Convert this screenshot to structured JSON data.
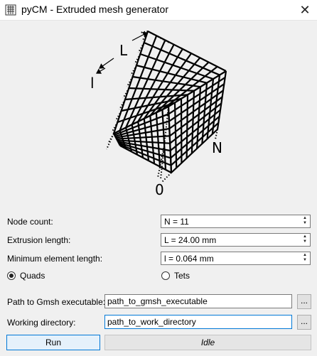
{
  "window": {
    "title": "pyCM - Extruded mesh generator",
    "close_glyph": "✕"
  },
  "figure": {
    "label_L": "L",
    "label_l": "l",
    "label_N": "N",
    "label_zero": "0"
  },
  "params": {
    "node_count_label": "Node count:",
    "node_count_value": "N = 11",
    "extrusion_label": "Extrusion length:",
    "extrusion_value": "L = 24.00 mm",
    "min_elem_label": "Minimum element length:",
    "min_elem_value": "l = 0.064 mm"
  },
  "element_type": {
    "quads_label": "Quads",
    "tets_label": "Tets",
    "selected": "quads"
  },
  "paths": {
    "gmsh_label": "Path to Gmsh executable:",
    "gmsh_value": "path_to_gmsh_executable",
    "workdir_label": "Working directory:",
    "workdir_value": "path_to_work_directory",
    "browse_label": "..."
  },
  "actions": {
    "run_label": "Run",
    "status_text": "Idle"
  },
  "spin_up_glyph": "▲",
  "spin_down_glyph": "▼"
}
